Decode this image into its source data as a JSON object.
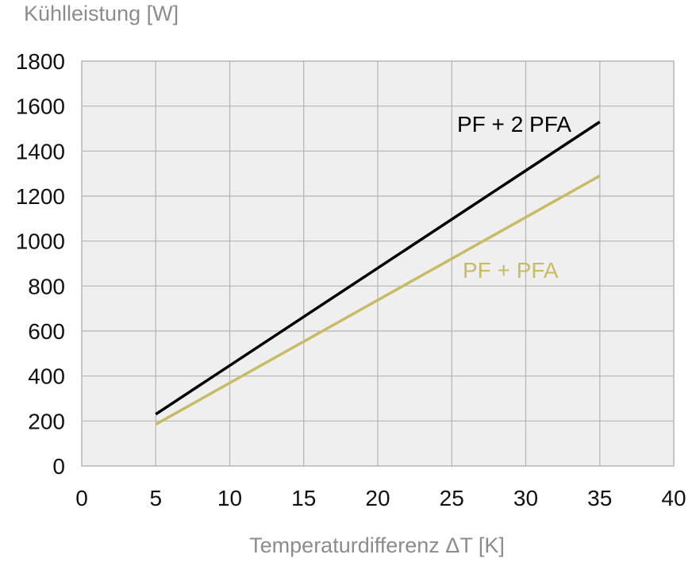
{
  "chart_data": {
    "type": "line",
    "ylabel": "Kühlleistung [W]",
    "xlabel": "Temperaturdifferenz ΔT [K]",
    "xlim": [
      0,
      40
    ],
    "ylim": [
      0,
      1800
    ],
    "x_ticks": [
      0,
      5,
      10,
      15,
      20,
      25,
      30,
      35,
      40
    ],
    "y_ticks": [
      0,
      200,
      400,
      600,
      800,
      1000,
      1200,
      1400,
      1600,
      1800
    ],
    "grid": true,
    "series": [
      {
        "name": "PF + 2 PFA",
        "color": "#000000",
        "x": [
          5,
          35
        ],
        "y": [
          230,
          1530
        ]
      },
      {
        "name": "PF + PFA",
        "color": "#c8bb66",
        "x": [
          5,
          35
        ],
        "y": [
          185,
          1290
        ]
      }
    ]
  }
}
